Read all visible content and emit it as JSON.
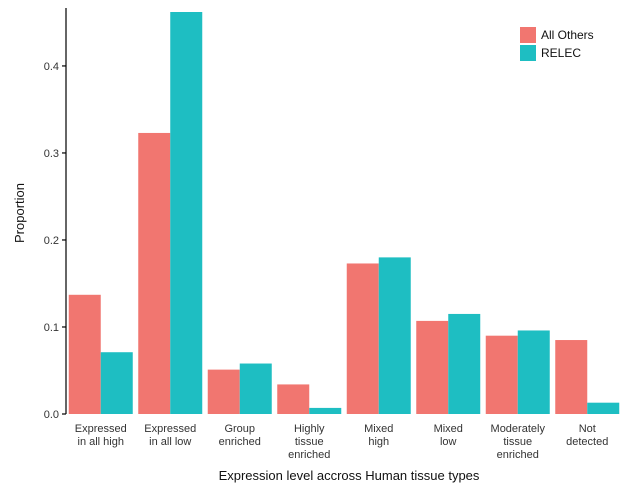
{
  "chart_data": {
    "type": "bar",
    "xlabel": "Expression level accross Human tissue types",
    "ylabel": "Proportion",
    "ylim": [
      0,
      0.462
    ],
    "yticks": [
      0.0,
      0.1,
      0.2,
      0.3,
      0.4
    ],
    "ytick_labels": [
      "0.0",
      "0.1",
      "0.2",
      "0.3",
      "0.4"
    ],
    "grid": false,
    "legend_position": "top-right",
    "categories": [
      [
        "Expressed",
        "in all high"
      ],
      [
        "Expressed",
        "in all low"
      ],
      [
        "Group",
        "enriched"
      ],
      [
        "Highly",
        "tissue",
        "enriched"
      ],
      [
        "Mixed",
        "high"
      ],
      [
        "Mixed",
        "low"
      ],
      [
        "Moderately",
        "tissue",
        "enriched"
      ],
      [
        "Not",
        "detected"
      ]
    ],
    "series": [
      {
        "name": "All Others",
        "color": "#F17670",
        "values": [
          0.137,
          0.323,
          0.051,
          0.034,
          0.173,
          0.107,
          0.09,
          0.085
        ]
      },
      {
        "name": "RELEC",
        "color": "#1EBEC2",
        "values": [
          0.071,
          0.462,
          0.058,
          0.007,
          0.18,
          0.115,
          0.096,
          0.013
        ]
      }
    ]
  }
}
